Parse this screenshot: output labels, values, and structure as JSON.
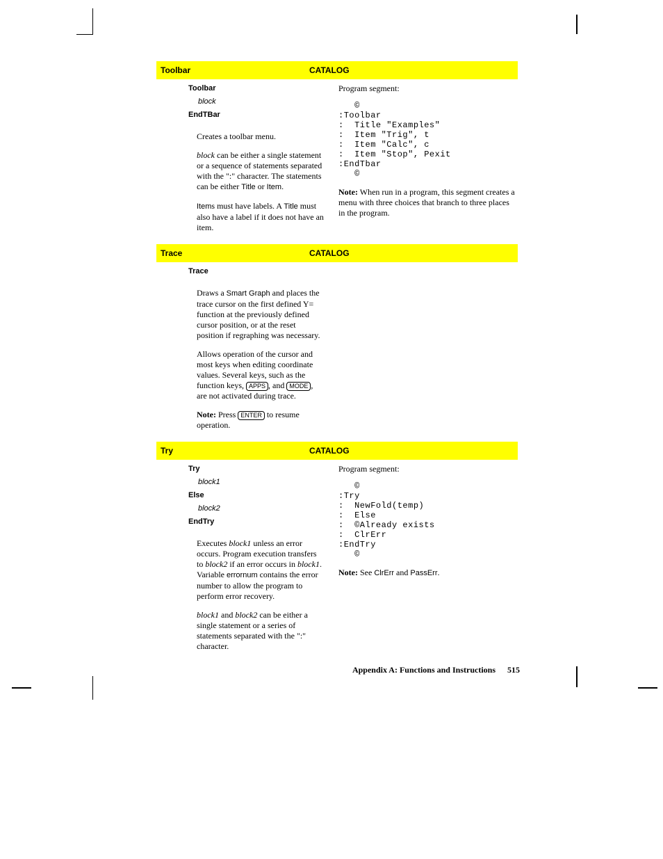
{
  "crop_marks": true,
  "colors": {
    "highlight": "#ffff00",
    "text": "#000000",
    "background": "#ffffff"
  },
  "footer": {
    "text": "Appendix A: Functions and Instructions",
    "page_number": "515"
  },
  "sections": [
    {
      "header": {
        "name": "Toolbar",
        "location": "CATALOG"
      },
      "syntax": [
        {
          "bold": "Toolbar",
          "rest": ""
        },
        {
          "italic": "block",
          "indent": true
        },
        {
          "bold": "EndTBar",
          "rest": ""
        }
      ],
      "paragraphs": [
        {
          "html": "Creates a toolbar menu."
        },
        {
          "html": "<i>block</i> can be either a single statement or a sequence of statements separated with the \":\" character. The statements can be either <span class='sans'>Title</span> or <span class='sans'>Item</span>."
        },
        {
          "html": "<span class='sans'>Item</span>s must have labels. A <span class='sans'>Title</span> must also have a label if it does not have an item."
        }
      ],
      "right": {
        "intro": "Program segment:",
        "code": "   ©\n:Toolbar\n:  Title \"Examples\"\n:  Item \"Trig\", t\n:  Item \"Calc\", c\n:  Item \"Stop\", Pexit\n:EndTbar\n   ©",
        "note": "<b>Note:</b> When run in a program, this segment creates a menu with three choices that branch to three places in the program."
      }
    },
    {
      "header": {
        "name": "Trace",
        "location": "CATALOG"
      },
      "syntax": [
        {
          "bold": "Trace",
          "rest": ""
        }
      ],
      "paragraphs": [
        {
          "html": "Draws a <span class='sans'>Smart Graph</span> and places the trace cursor on the first defined Y= function at the previously defined cursor position, or at the reset position if regraphing was necessary."
        },
        {
          "html": "Allows operation of the cursor and most keys when editing coordinate values. Several keys, such as the function keys, <span class='keycap'>APPS</span>, and <span class='keycap'>MODE</span>, are not activated during trace."
        },
        {
          "html": "<b>Note:</b> Press <span class='keycap'>ENTER</span> to resume operation."
        }
      ],
      "right": null
    },
    {
      "header": {
        "name": "Try",
        "location": "CATALOG"
      },
      "syntax": [
        {
          "bold": "Try",
          "rest": ""
        },
        {
          "italic": "block1",
          "indent": true
        },
        {
          "bold": "Else",
          "rest": ""
        },
        {
          "italic": "block2",
          "indent": true
        },
        {
          "bold": "EndTry",
          "rest": ""
        }
      ],
      "paragraphs": [
        {
          "html": "Executes <i>block1</i> unless an error occurs. Program execution transfers to <i>block2</i> if an error occurs in <i>block1</i>. Variable <span class='sans'>errornum</span> contains the error number to allow the program to perform error recovery."
        },
        {
          "html": "<i>block1</i> and <i>block2</i> can be either a single statement or a series of statements separated with the \":\" character."
        }
      ],
      "right": {
        "intro": "Program segment:",
        "code": "   ©\n:Try\n:  NewFold(temp)\n:  Else\n:  ©Already exists\n:  ClrErr\n:EndTry\n   ©",
        "note": "<b>Note:</b> See <span class='sans'>ClrErr</span> and <span class='sans'>PassErr</span>."
      }
    }
  ]
}
